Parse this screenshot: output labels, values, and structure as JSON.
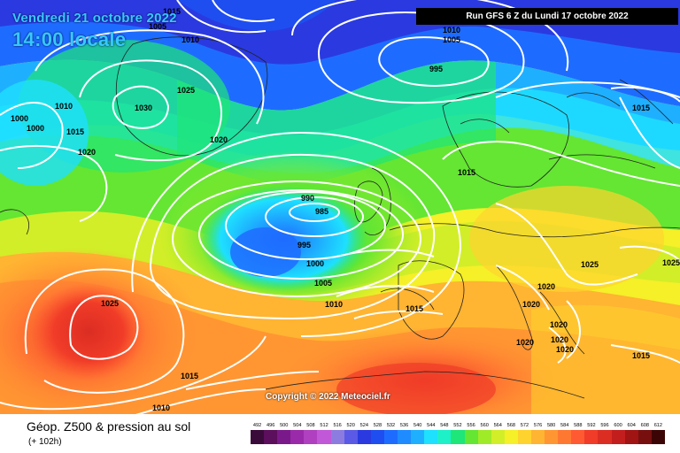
{
  "header": {
    "date": "Vendredi 21 octobre 2022",
    "time": "14:00 locale",
    "run": "Run GFS 6 Z du Lundi 17 octobre 2022"
  },
  "copyright": "Copyright © 2022 Meteociel.fr",
  "footer": {
    "title": "Géop. Z500 & pression au sol",
    "subtitle": "(+ 102h)"
  },
  "isobar_labels": [
    "1015",
    "1010",
    "1010",
    "1005",
    "1000",
    "1025",
    "1030",
    "1000",
    "1005",
    "1010",
    "1015",
    "1020",
    "1020",
    "995",
    "990",
    "985",
    "995",
    "1000",
    "1005",
    "1010",
    "1015",
    "1015",
    "1025",
    "1020",
    "1020",
    "1020",
    "1020",
    "1020",
    "1020",
    "1015",
    "1015",
    "1025",
    "1025",
    "1015",
    "1010"
  ],
  "legend": {
    "values": [
      "492",
      "496",
      "500",
      "504",
      "508",
      "512",
      "516",
      "520",
      "524",
      "528",
      "532",
      "536",
      "540",
      "544",
      "548",
      "552",
      "556",
      "560",
      "564",
      "568",
      "572",
      "576",
      "580",
      "584",
      "588",
      "592",
      "596",
      "600",
      "604",
      "608",
      "612"
    ],
    "colors": [
      "#3a0a3a",
      "#5c0f5c",
      "#7a1a8a",
      "#9a2aaa",
      "#b040c0",
      "#c058d8",
      "#8c7ce0",
      "#5a5ae6",
      "#2a3ae0",
      "#1e4ef0",
      "#1e6cff",
      "#1e8cff",
      "#1eb0ff",
      "#1ee0ff",
      "#1ef0c8",
      "#1ee678",
      "#64e632",
      "#a0eb28",
      "#d2ee28",
      "#f5f028",
      "#ffd32d",
      "#ffb432",
      "#ff9632",
      "#ff7832",
      "#ff5a32",
      "#f03c28",
      "#dc2d23",
      "#c31e1e",
      "#a01414",
      "#780f0f",
      "#3c0505"
    ]
  }
}
